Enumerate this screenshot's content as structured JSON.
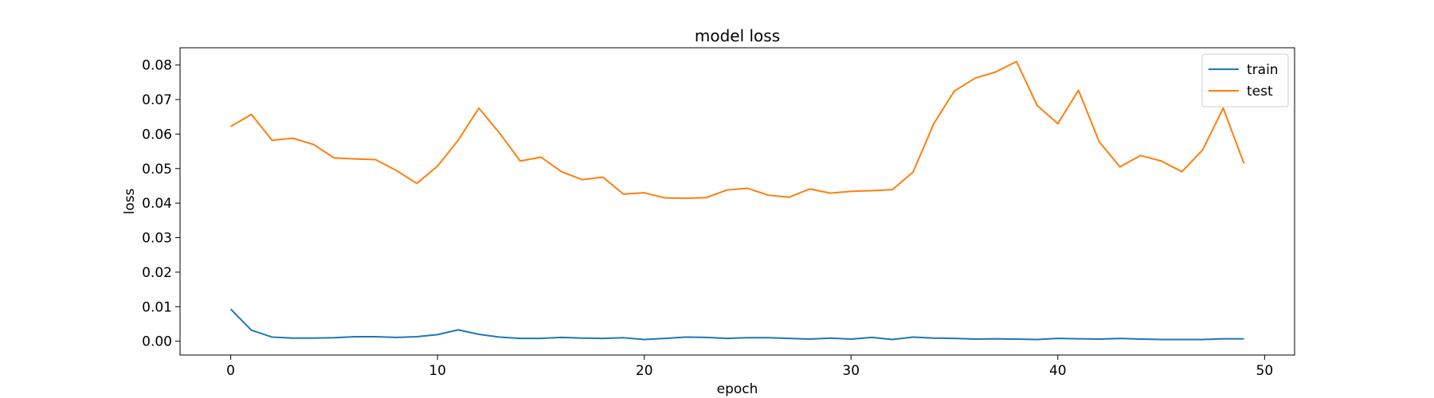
{
  "chart_data": {
    "type": "line",
    "title": "model loss",
    "xlabel": "epoch",
    "ylabel": "loss",
    "xlim": [
      -2.45,
      51.45
    ],
    "ylim": [
      -0.004,
      0.085
    ],
    "xticks": [
      0,
      10,
      20,
      30,
      40,
      50
    ],
    "yticks": [
      0.0,
      0.01,
      0.02,
      0.03,
      0.04,
      0.05,
      0.06,
      0.07,
      0.08
    ],
    "ytick_labels": [
      "0.00",
      "0.01",
      "0.02",
      "0.03",
      "0.04",
      "0.05",
      "0.06",
      "0.07",
      "0.08"
    ],
    "legend_position": "top-right",
    "grid": false,
    "x": [
      0,
      1,
      2,
      3,
      4,
      5,
      6,
      7,
      8,
      9,
      10,
      11,
      12,
      13,
      14,
      15,
      16,
      17,
      18,
      19,
      20,
      21,
      22,
      23,
      24,
      25,
      26,
      27,
      28,
      29,
      30,
      31,
      32,
      33,
      34,
      35,
      36,
      37,
      38,
      39,
      40,
      41,
      42,
      43,
      44,
      45,
      46,
      47,
      48,
      49
    ],
    "series": [
      {
        "name": "train",
        "color": "#1f77b4",
        "values": [
          0.0093,
          0.0032,
          0.0012,
          0.0009,
          0.0009,
          0.001,
          0.0013,
          0.0013,
          0.0011,
          0.0013,
          0.0019,
          0.0033,
          0.002,
          0.0012,
          0.0008,
          0.0008,
          0.0011,
          0.0009,
          0.0008,
          0.001,
          0.0005,
          0.0008,
          0.0012,
          0.0011,
          0.0008,
          0.001,
          0.001,
          0.0008,
          0.0006,
          0.0009,
          0.0006,
          0.0011,
          0.0005,
          0.0012,
          0.0009,
          0.0008,
          0.0006,
          0.0007,
          0.0006,
          0.0005,
          0.0008,
          0.0007,
          0.0006,
          0.0008,
          0.0006,
          0.0005,
          0.0005,
          0.0005,
          0.0007,
          0.0007
        ]
      },
      {
        "name": "test",
        "color": "#ff7f0e",
        "values": [
          0.0622,
          0.0657,
          0.0582,
          0.0588,
          0.057,
          0.0531,
          0.0528,
          0.0526,
          0.0495,
          0.0457,
          0.0507,
          0.0582,
          0.0675,
          0.0603,
          0.0522,
          0.0533,
          0.0491,
          0.0468,
          0.0475,
          0.0426,
          0.043,
          0.0415,
          0.0414,
          0.0416,
          0.0438,
          0.0443,
          0.0423,
          0.0417,
          0.0441,
          0.0429,
          0.0434,
          0.0436,
          0.0439,
          0.049,
          0.063,
          0.0725,
          0.0762,
          0.078,
          0.081,
          0.0683,
          0.063,
          0.0727,
          0.0578,
          0.0505,
          0.0538,
          0.0522,
          0.0491,
          0.0554,
          0.0675,
          0.0515
        ]
      }
    ]
  }
}
